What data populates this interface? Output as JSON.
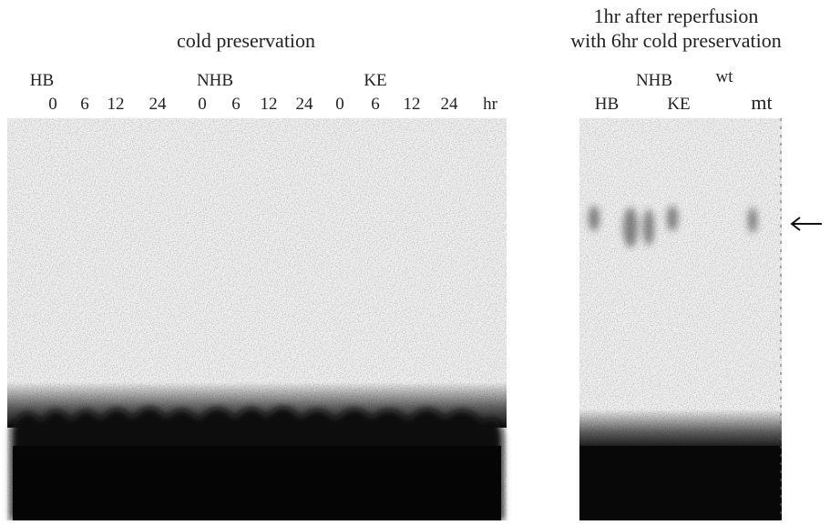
{
  "left_panel": {
    "title": "cold preservation",
    "groups": [
      {
        "label": "HB",
        "lanes": [
          "0",
          "6",
          "12",
          "24"
        ]
      },
      {
        "label": "NHB",
        "lanes": [
          "0",
          "6",
          "12",
          "24"
        ]
      },
      {
        "label": "KE",
        "lanes": [
          "0",
          "6",
          "12",
          "24"
        ]
      }
    ],
    "unit": "hr"
  },
  "right_panel": {
    "title_lines": [
      "1hr after reperfusion",
      "with 6hr cold preservation"
    ],
    "labels": [
      "NHB",
      "wt",
      "HB",
      "KE",
      "mt"
    ]
  }
}
